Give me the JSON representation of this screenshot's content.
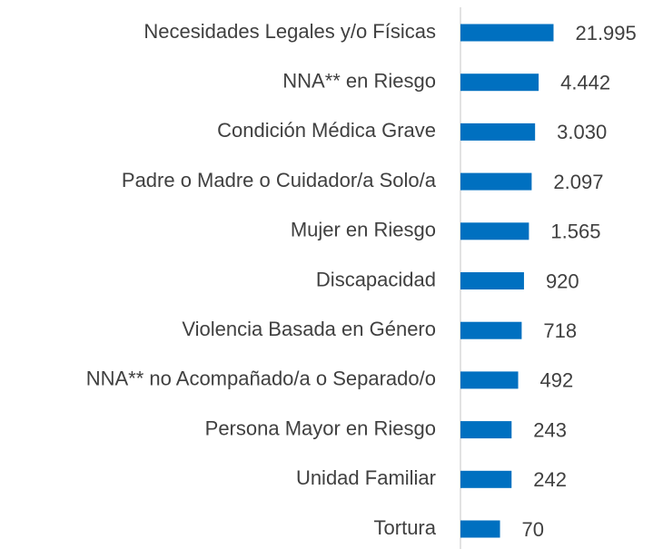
{
  "chart_data": {
    "type": "barh",
    "categories": [
      "Necesidades Legales y/o Físicas",
      "NNA** en Riesgo",
      "Condición Médica Grave",
      "Padre o Madre o Cuidador/a Solo/a",
      "Mujer en Riesgo",
      "Discapacidad",
      "Violencia Basada en Género",
      "NNA** no Acompañado/a o Separado/o",
      "Persona Mayor en Riesgo",
      "Unidad Familiar",
      "Tortura"
    ],
    "values": [
      21995,
      4442,
      3030,
      2097,
      1565,
      920,
      718,
      492,
      243,
      242,
      70
    ],
    "value_labels": [
      "21.995",
      "4.442",
      "3.030",
      "2.097",
      "1.565",
      "920",
      "718",
      "492",
      "243",
      "242",
      "70"
    ],
    "color": "#0070c0",
    "log_scale": true,
    "xlim": [
      1,
      100000
    ]
  }
}
